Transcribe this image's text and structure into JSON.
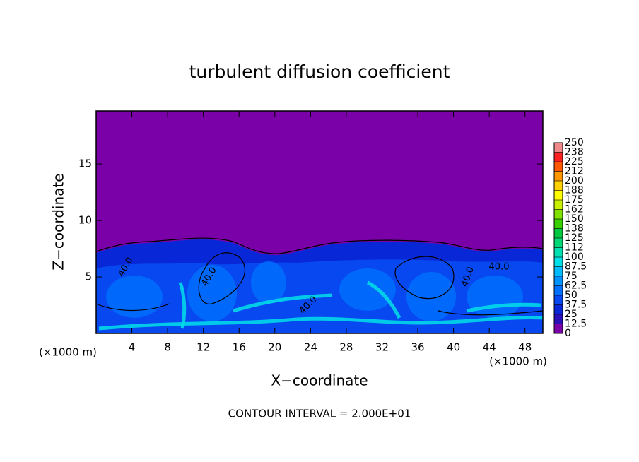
{
  "chart_data": {
    "type": "contour",
    "title": "turbulent diffusion coefficient",
    "xlabel": "X−coordinate",
    "ylabel": "Z−coordinate",
    "unit_labels": [
      "(×1000 m)",
      "(×1000 m)"
    ],
    "footnote": "CONTOUR INTERVAL = 2.000E+01",
    "contour_labels": [
      "40.0",
      "40.0",
      "40.0",
      "40.0",
      "40.0"
    ],
    "xlim": [
      0,
      50
    ],
    "xticks": [
      4,
      8,
      12,
      16,
      20,
      24,
      28,
      32,
      36,
      40,
      44,
      48
    ],
    "ylim": [
      0,
      19.7
    ],
    "yticks": [
      5,
      10,
      15
    ],
    "colorbar_ticks": [
      0,
      12.5,
      25,
      37.5,
      50,
      62.5,
      75,
      87.5,
      100,
      {
        "value": 112.5,
        "label": "112"
      },
      125,
      {
        "value": 137.5,
        "label": "138"
      },
      150,
      {
        "value": 162.5,
        "label": "162"
      },
      175,
      {
        "value": 187.5,
        "label": "188"
      },
      200,
      {
        "value": 212.5,
        "label": "212"
      },
      225,
      {
        "value": 237.5,
        "label": "238"
      },
      250
    ],
    "colorbar_colors": [
      "#7a00a8",
      "#2a10b8",
      "#0828d8",
      "#0848f0",
      "#0070ff",
      "#0094ff",
      "#00bcff",
      "#00e0e8",
      "#00e0b0",
      "#00d878",
      "#00c840",
      "#38d000",
      "#80e000",
      "#c8f000",
      "#ffff00",
      "#ffd000",
      "#ff9800",
      "#ff5800",
      "#ff2020",
      "#f08a8a"
    ]
  }
}
